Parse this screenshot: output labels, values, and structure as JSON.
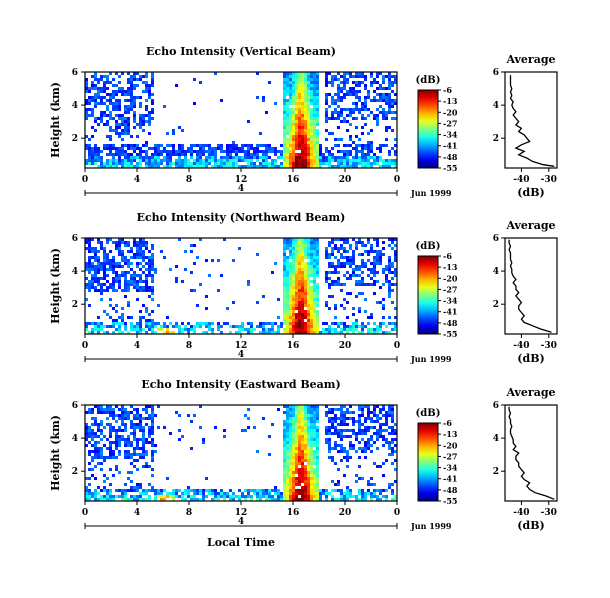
{
  "chart_data": [
    {
      "type": "heatmap",
      "title": "Echo Intensity (Vertical Beam)",
      "ylabel": "Height (km)",
      "xlabel": "",
      "ylim": [
        0.2,
        6.0
      ],
      "xlim": [
        0,
        24
      ],
      "xticks": [
        "0",
        "4",
        "8",
        "12",
        "16",
        "20",
        "0"
      ],
      "yticks": [
        "2",
        "4",
        "6"
      ],
      "date_label": "Jun 1999",
      "day_marker": "4",
      "colorbar": {
        "unit": "(dB)",
        "range": [
          -55,
          -6
        ],
        "ticks": [
          "-6",
          "-13",
          "-20",
          "-27",
          "-34",
          "-41",
          "-48",
          "-55"
        ]
      },
      "average_profile": {
        "title": "Average",
        "xlabel": "(dB)",
        "xticks": [
          "-40",
          "-30"
        ],
        "yticks": [
          "2",
          "4",
          "6"
        ],
        "xlim": [
          -46,
          -27
        ],
        "ylim": [
          0.2,
          6.0
        ],
        "height_km": [
          0.3,
          0.4,
          0.6,
          0.8,
          1.0,
          1.2,
          1.4,
          1.6,
          1.8,
          2.0,
          2.2,
          2.4,
          2.6,
          2.8,
          3.0,
          3.2,
          3.4,
          3.6,
          3.8,
          4.0,
          4.2,
          4.4,
          4.6,
          4.8,
          5.0,
          5.2,
          5.4,
          5.6,
          5.8
        ],
        "db": [
          -28,
          -32,
          -36,
          -38,
          -41,
          -39,
          -42,
          -40,
          -37,
          -38,
          -39,
          -41,
          -40,
          -42,
          -41,
          -42,
          -43,
          -42,
          -43,
          -43.5,
          -43,
          -44,
          -43.5,
          -44,
          -43.5,
          -44,
          -44,
          -44,
          -44
        ]
      }
    },
    {
      "type": "heatmap",
      "title": "Echo Intensity (Northward Beam)",
      "ylabel": "Height (km)",
      "xlabel": "",
      "ylim": [
        0.2,
        6.0
      ],
      "xlim": [
        0,
        24
      ],
      "xticks": [
        "0",
        "4",
        "8",
        "12",
        "16",
        "20",
        "0"
      ],
      "yticks": [
        "2",
        "4",
        "6"
      ],
      "date_label": "Jun 1999",
      "day_marker": "4",
      "colorbar": {
        "unit": "(dB)",
        "range": [
          -55,
          -6
        ],
        "ticks": [
          "-6",
          "-13",
          "-20",
          "-27",
          "-34",
          "-41",
          "-48",
          "-55"
        ]
      },
      "average_profile": {
        "title": "Average",
        "xlabel": "(dB)",
        "xticks": [
          "-40",
          "-30"
        ],
        "yticks": [
          "2",
          "4",
          "6"
        ],
        "xlim": [
          -46,
          -27
        ],
        "ylim": [
          0.2,
          6.0
        ],
        "height_km": [
          0.3,
          0.5,
          0.7,
          0.9,
          1.1,
          1.3,
          1.5,
          1.7,
          1.9,
          2.1,
          2.3,
          2.5,
          2.7,
          2.9,
          3.1,
          3.3,
          3.5,
          3.7,
          3.9,
          4.1,
          4.3,
          4.5,
          4.7,
          4.9,
          5.1,
          5.3,
          5.5,
          5.7,
          5.9
        ],
        "db": [
          -29,
          -33,
          -36,
          -39,
          -40,
          -39,
          -40,
          -41,
          -41,
          -40,
          -41,
          -42,
          -41,
          -42,
          -42,
          -43,
          -42,
          -43,
          -43.5,
          -43.5,
          -44,
          -43.5,
          -44,
          -44,
          -44,
          -44.5,
          -44,
          -44.5,
          -44.5
        ]
      }
    },
    {
      "type": "heatmap",
      "title": "Echo Intensity (Eastward Beam)",
      "ylabel": "Height (km)",
      "xlabel": "Local Time",
      "ylim": [
        0.2,
        6.0
      ],
      "xlim": [
        0,
        24
      ],
      "xticks": [
        "0",
        "4",
        "8",
        "12",
        "16",
        "20",
        "0"
      ],
      "yticks": [
        "2",
        "4",
        "6"
      ],
      "date_label": "Jun 1999",
      "day_marker": "4",
      "colorbar": {
        "unit": "(dB)",
        "range": [
          -55,
          -6
        ],
        "ticks": [
          "-6",
          "-13",
          "-20",
          "-27",
          "-34",
          "-41",
          "-48",
          "-55"
        ]
      },
      "average_profile": {
        "title": "Average",
        "xlabel": "(dB)",
        "xticks": [
          "-40",
          "-30"
        ],
        "yticks": [
          "2",
          "4",
          "6"
        ],
        "xlim": [
          -46,
          -27
        ],
        "ylim": [
          0.2,
          6.0
        ],
        "height_km": [
          0.3,
          0.5,
          0.7,
          0.9,
          1.1,
          1.3,
          1.5,
          1.7,
          1.9,
          2.1,
          2.3,
          2.5,
          2.7,
          2.9,
          3.1,
          3.3,
          3.5,
          3.7,
          3.9,
          4.1,
          4.3,
          4.5,
          4.7,
          4.9,
          5.1,
          5.3,
          5.5,
          5.7,
          5.9
        ],
        "db": [
          -28,
          -31,
          -35,
          -37,
          -38,
          -37,
          -39,
          -40,
          -39,
          -40,
          -41,
          -41,
          -42,
          -42,
          -41,
          -43,
          -42,
          -43,
          -43,
          -43.5,
          -44,
          -44,
          -43.5,
          -44,
          -44,
          -44.5,
          -44,
          -44.5,
          -44.5
        ]
      }
    }
  ]
}
